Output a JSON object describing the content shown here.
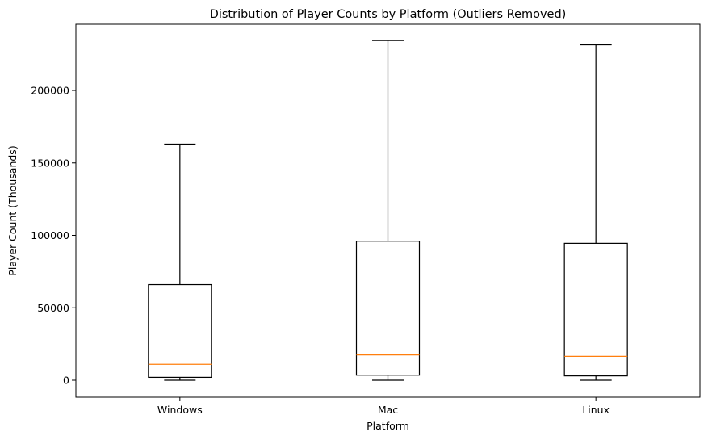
{
  "chart_data": {
    "type": "box",
    "title": "Distribution of Player Counts by Platform (Outliers Removed)",
    "xlabel": "Platform",
    "ylabel": "Player Count (Thousands)",
    "categories": [
      "Windows",
      "Mac",
      "Linux"
    ],
    "boxes": [
      {
        "name": "Windows",
        "whisker_low": 0,
        "q1": 2000,
        "median": 11000,
        "q3": 66000,
        "whisker_high": 163000
      },
      {
        "name": "Mac",
        "whisker_low": 0,
        "q1": 3500,
        "median": 17500,
        "q3": 96000,
        "whisker_high": 234500
      },
      {
        "name": "Linux",
        "whisker_low": 0,
        "q1": 3000,
        "median": 16500,
        "q3": 94500,
        "whisker_high": 231500
      }
    ],
    "yticks": [
      0,
      50000,
      100000,
      150000,
      200000
    ],
    "ylim": [
      -11700,
      245700
    ],
    "grid": false,
    "legend": "none",
    "colors": {
      "box": "#000000",
      "median": "#ff7f0e",
      "background": "#ffffff"
    }
  }
}
